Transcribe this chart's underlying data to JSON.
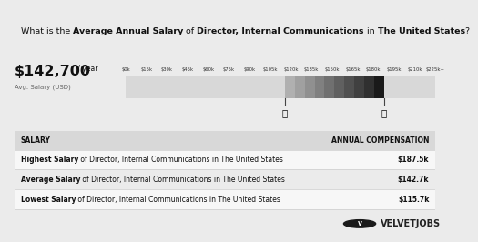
{
  "title_parts": [
    [
      "What is the ",
      false
    ],
    [
      "Average Annual Salary",
      true
    ],
    [
      " of ",
      false
    ],
    [
      "Director, Internal Communications",
      true
    ],
    [
      " in ",
      false
    ],
    [
      "The United States",
      true
    ],
    [
      "?",
      false
    ]
  ],
  "main_salary": "$142,700",
  "main_salary_suffix": " / year",
  "avg_label": "Avg. Salary (USD)",
  "ticks": [
    "$0k",
    "$15k",
    "$30k",
    "$45k",
    "$60k",
    "$75k",
    "$90k",
    "$105k",
    "$120k",
    "$135k",
    "$150k",
    "$165k",
    "$180k",
    "$195k",
    "$210k",
    "$225k+"
  ],
  "tick_values": [
    0,
    15,
    30,
    45,
    60,
    75,
    90,
    105,
    120,
    135,
    150,
    165,
    180,
    195,
    210,
    225
  ],
  "bar_min": 115.7,
  "bar_max": 187.5,
  "bar_avg": 142.7,
  "full_range_max": 225,
  "table_header_salary": "SALARY",
  "table_header_comp": "ANNUAL COMPENSATION",
  "rows": [
    {
      "bold": "Highest Salary",
      "rest": " of Director, Internal Communications in The United States",
      "value": "$187.5k"
    },
    {
      "bold": "Average Salary",
      "rest": " of Director, Internal Communications in The United States",
      "value": "$142.7k"
    },
    {
      "bold": "Lowest Salary",
      "rest": " of Director, Internal Communications in The United States",
      "value": "$115.7k"
    }
  ],
  "brand": "VELVETJOBS",
  "bg_color": "#ebebeb",
  "title_bg": "#ffffff",
  "title_border": "#cccccc",
  "bar_section_bg": "#ebebeb",
  "bar_bg_color": "#d8d8d8",
  "segment_colors": [
    "#b0b0b0",
    "#a0a0a0",
    "#909090",
    "#808080",
    "#707070",
    "#606060",
    "#505050",
    "#404040",
    "#303030",
    "#1a1a1a"
  ],
  "table_header_bg": "#d8d8d8",
  "row_bg": [
    "#f7f7f7",
    "#ebebeb",
    "#f7f7f7"
  ],
  "divider_color": "#cccccc",
  "table_border": "#cccccc"
}
